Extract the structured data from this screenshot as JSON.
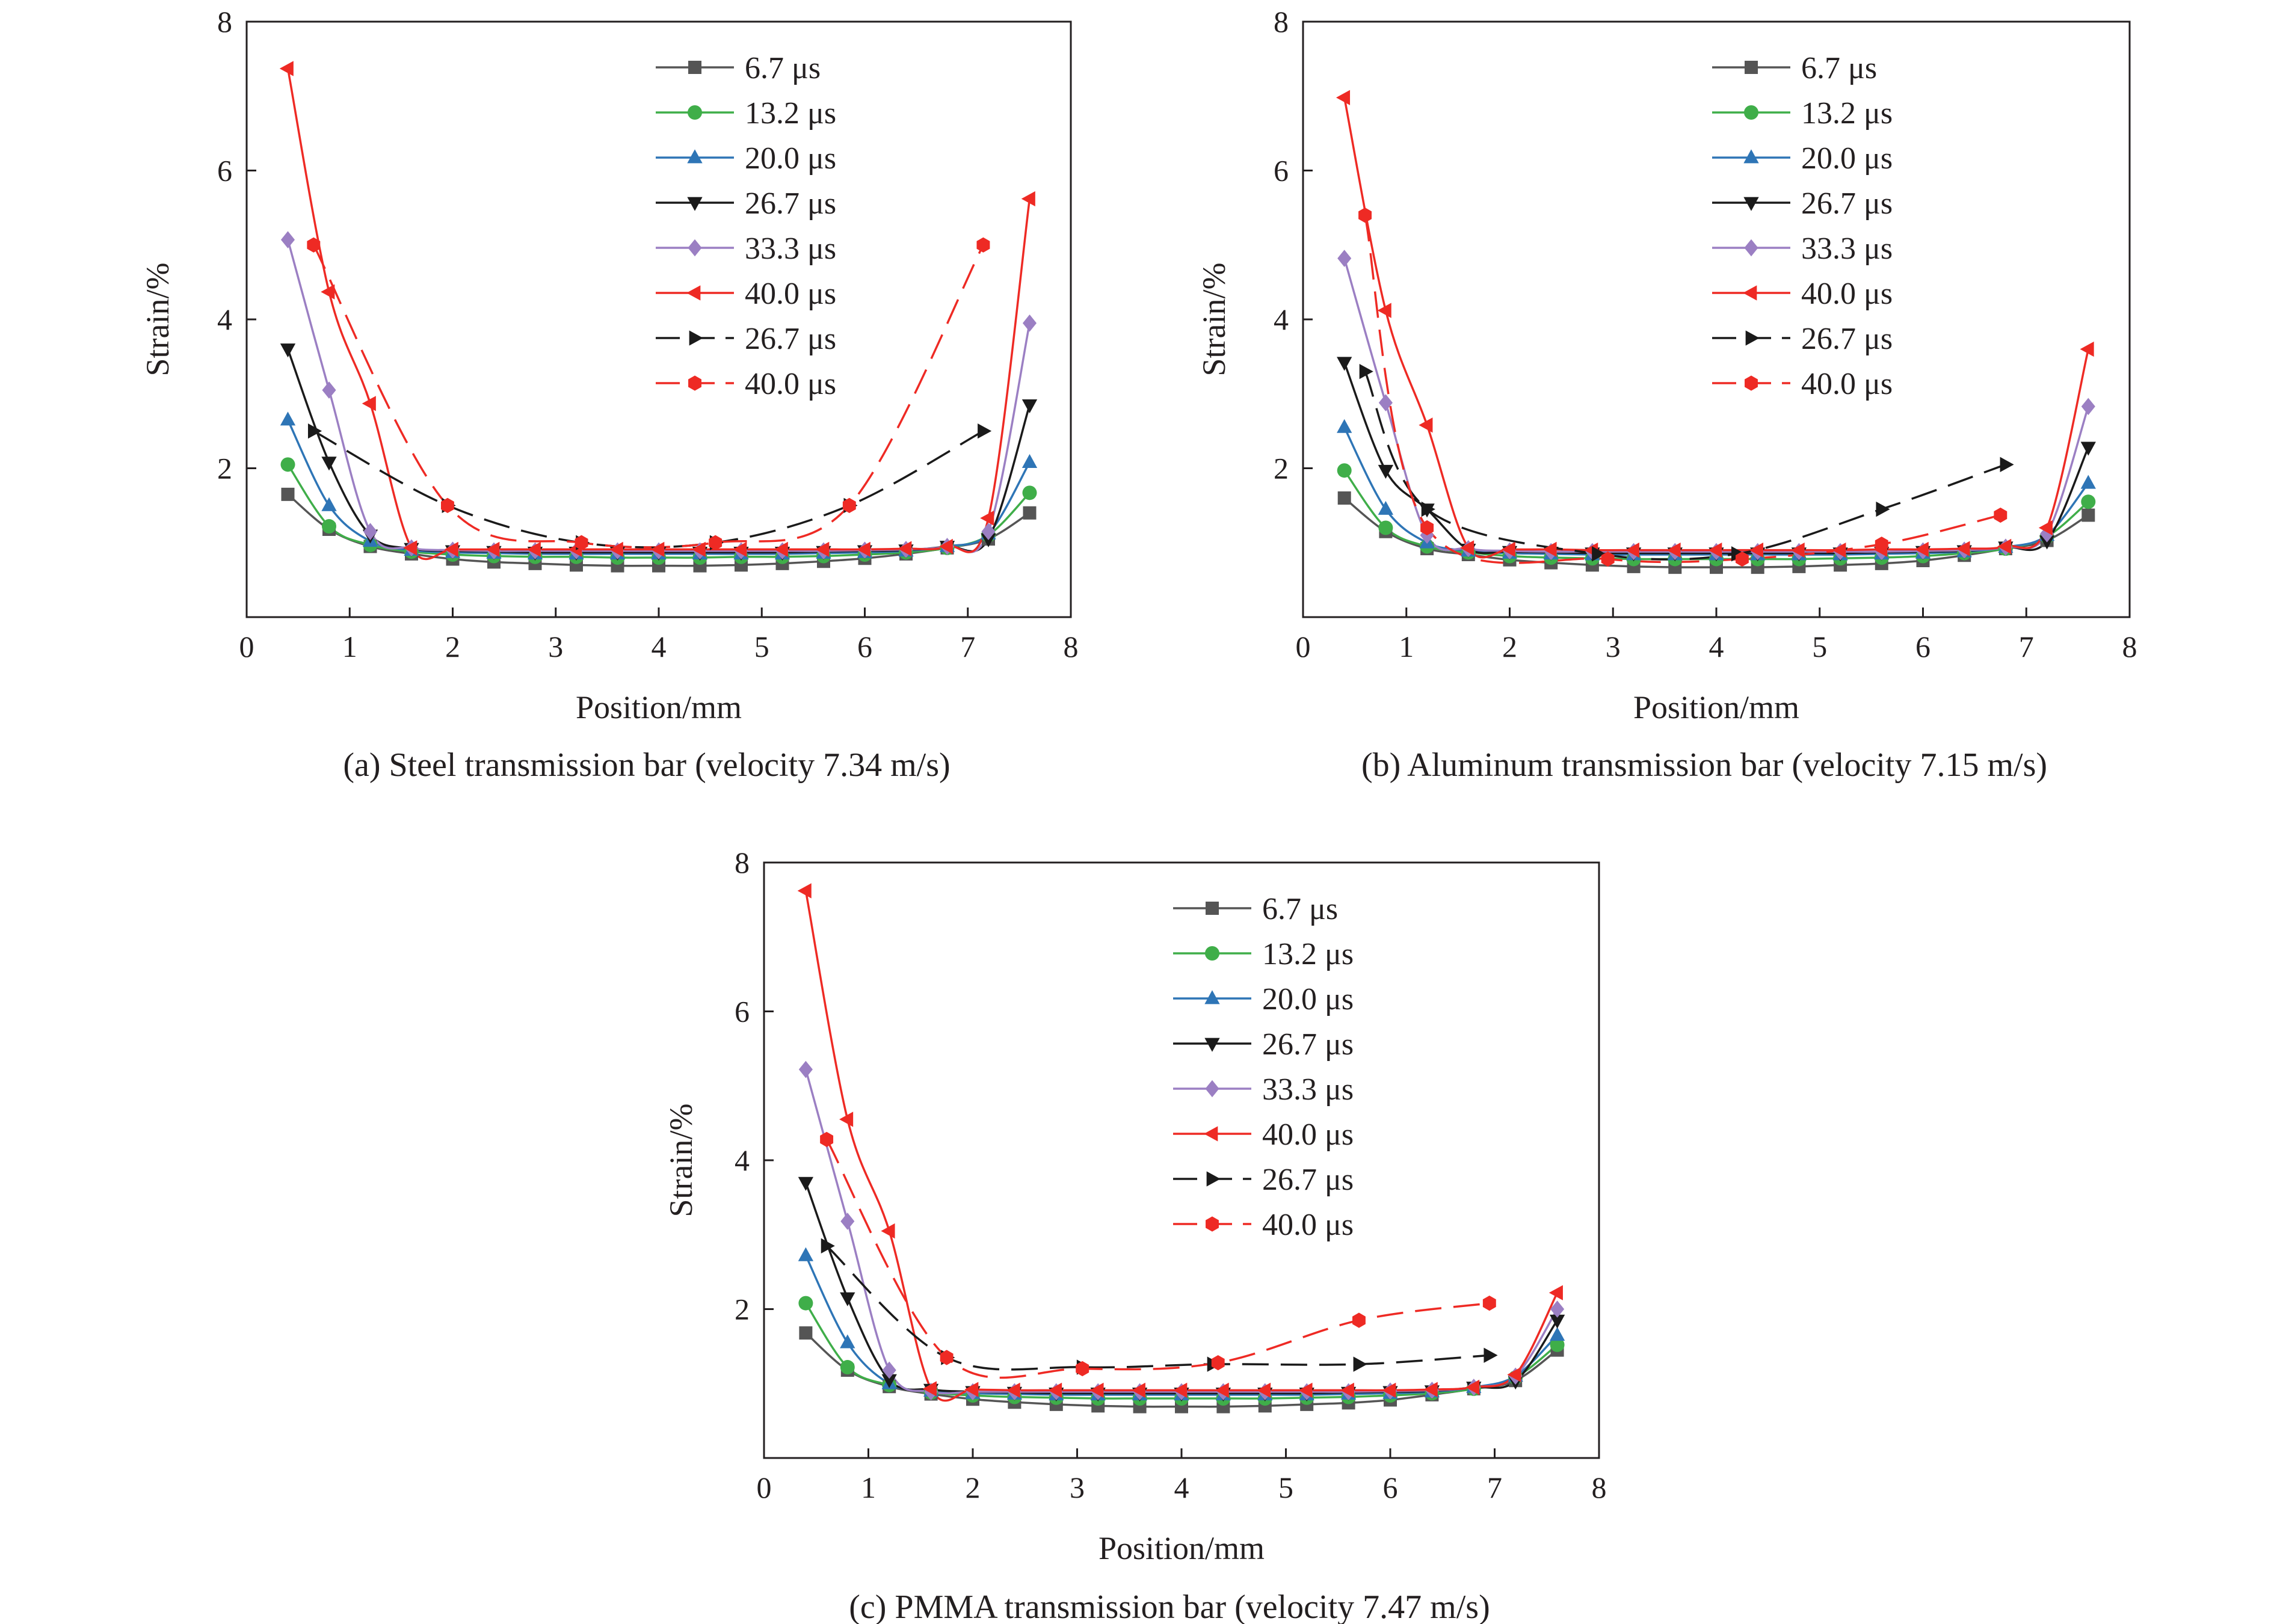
{
  "chart_data": [
    {
      "type": "line",
      "caption": "(a) Steel transmission bar (velocity 7.34 m/s)",
      "xlabel": "Position/mm",
      "ylabel": "Strain/%",
      "xlim": [
        0,
        8
      ],
      "ylim": [
        0,
        8
      ],
      "xticks": [
        "0",
        "1",
        "2",
        "3",
        "4",
        "5",
        "6",
        "7",
        "8"
      ],
      "yticks": [
        "2",
        "4",
        "6",
        "8"
      ],
      "grid": false,
      "legend_position": "top-right",
      "series": [
        {
          "name": "6.7 μs",
          "color": "#555555",
          "marker": "square",
          "dashed": false,
          "x": [
            0.4,
            0.8,
            1.2,
            1.6,
            2.0,
            2.4,
            2.8,
            3.2,
            3.6,
            4.0,
            4.4,
            4.8,
            5.2,
            5.6,
            6.0,
            6.4,
            6.8,
            7.2,
            7.6
          ],
          "y": [
            1.65,
            1.18,
            0.95,
            0.85,
            0.78,
            0.74,
            0.72,
            0.7,
            0.69,
            0.69,
            0.69,
            0.7,
            0.72,
            0.75,
            0.79,
            0.85,
            0.93,
            1.05,
            1.4
          ]
        },
        {
          "name": "13.2 μs",
          "color": "#3fae49",
          "marker": "circle",
          "dashed": false,
          "x": [
            0.4,
            0.8,
            1.2,
            1.6,
            2.0,
            2.4,
            2.8,
            3.2,
            3.6,
            4.0,
            4.4,
            4.8,
            5.2,
            5.6,
            6.0,
            6.4,
            6.8,
            7.2,
            7.6
          ],
          "y": [
            2.05,
            1.22,
            0.97,
            0.88,
            0.84,
            0.82,
            0.81,
            0.81,
            0.8,
            0.8,
            0.8,
            0.81,
            0.81,
            0.82,
            0.84,
            0.87,
            0.93,
            1.1,
            1.67
          ]
        },
        {
          "name": "20.0 μs",
          "color": "#2e75b6",
          "marker": "triangle-up",
          "dashed": false,
          "x": [
            0.4,
            0.8,
            1.2,
            1.6,
            2.0,
            2.4,
            2.8,
            3.2,
            3.6,
            4.0,
            4.4,
            4.8,
            5.2,
            5.6,
            6.0,
            6.4,
            6.8,
            7.2,
            7.6
          ],
          "y": [
            2.65,
            1.5,
            1.02,
            0.9,
            0.87,
            0.86,
            0.85,
            0.85,
            0.85,
            0.85,
            0.85,
            0.85,
            0.85,
            0.86,
            0.87,
            0.89,
            0.95,
            1.12,
            2.08
          ]
        },
        {
          "name": "26.7 μs",
          "color": "#1a1a1a",
          "marker": "triangle-down",
          "dashed": false,
          "x": [
            0.4,
            0.8,
            1.2,
            1.6,
            2.0,
            2.4,
            2.8,
            3.2,
            3.6,
            4.0,
            4.4,
            4.8,
            5.2,
            5.6,
            6.0,
            6.4,
            6.8,
            7.2,
            7.6
          ],
          "y": [
            3.6,
            2.08,
            1.1,
            0.92,
            0.89,
            0.88,
            0.87,
            0.87,
            0.87,
            0.87,
            0.87,
            0.87,
            0.87,
            0.88,
            0.89,
            0.9,
            0.95,
            1.05,
            2.85
          ]
        },
        {
          "name": "33.3 μs",
          "color": "#9b7fc3",
          "marker": "diamond",
          "dashed": false,
          "x": [
            0.4,
            0.8,
            1.2,
            1.6,
            2.0,
            2.4,
            2.8,
            3.2,
            3.6,
            4.0,
            4.4,
            4.8,
            5.2,
            5.6,
            6.0,
            6.4,
            6.8,
            7.2,
            7.6
          ],
          "y": [
            5.07,
            3.05,
            1.15,
            0.93,
            0.9,
            0.89,
            0.89,
            0.89,
            0.89,
            0.89,
            0.89,
            0.89,
            0.89,
            0.89,
            0.9,
            0.91,
            0.95,
            1.15,
            3.95
          ]
        },
        {
          "name": "40.0 μs",
          "color": "#ee2a24",
          "marker": "triangle-left",
          "dashed": false,
          "x": [
            0.4,
            0.8,
            1.2,
            1.6,
            2.0,
            2.4,
            2.8,
            3.2,
            3.6,
            4.0,
            4.4,
            4.8,
            5.2,
            5.6,
            6.0,
            6.4,
            6.8,
            7.2,
            7.6
          ],
          "y": [
            7.37,
            4.37,
            2.87,
            0.93,
            0.91,
            0.91,
            0.91,
            0.91,
            0.91,
            0.91,
            0.91,
            0.91,
            0.91,
            0.91,
            0.91,
            0.92,
            0.95,
            1.33,
            5.62
          ]
        },
        {
          "name": "26.7 μs",
          "color": "#1a1a1a",
          "marker": "triangle-right",
          "dashed": true,
          "x": [
            0.65,
            1.95,
            3.25,
            4.55,
            5.85,
            7.15
          ],
          "y": [
            2.5,
            1.5,
            1.0,
            1.0,
            1.5,
            2.5
          ]
        },
        {
          "name": "40.0 μs",
          "color": "#ee2a24",
          "marker": "hexagon",
          "dashed": true,
          "x": [
            0.65,
            1.95,
            3.25,
            4.55,
            5.85,
            7.15
          ],
          "y": [
            5.0,
            1.5,
            1.0,
            1.0,
            1.5,
            5.0
          ]
        }
      ]
    },
    {
      "type": "line",
      "caption": "(b) Aluminum transmission bar (velocity 7.15 m/s)",
      "xlabel": "Position/mm",
      "ylabel": "Strain/%",
      "xlim": [
        0,
        8
      ],
      "ylim": [
        0,
        8
      ],
      "xticks": [
        "0",
        "1",
        "2",
        "3",
        "4",
        "5",
        "6",
        "7",
        "8"
      ],
      "yticks": [
        "2",
        "4",
        "6",
        "8"
      ],
      "grid": false,
      "legend_position": "top-right",
      "series": [
        {
          "name": "6.7 μs",
          "color": "#555555",
          "marker": "square",
          "dashed": false,
          "x": [
            0.4,
            0.8,
            1.2,
            1.6,
            2.0,
            2.4,
            2.8,
            3.2,
            3.6,
            4.0,
            4.4,
            4.8,
            5.2,
            5.6,
            6.0,
            6.4,
            6.8,
            7.2,
            7.6
          ],
          "y": [
            1.6,
            1.15,
            0.92,
            0.84,
            0.77,
            0.73,
            0.7,
            0.68,
            0.67,
            0.67,
            0.67,
            0.68,
            0.7,
            0.72,
            0.76,
            0.83,
            0.92,
            1.03,
            1.37
          ]
        },
        {
          "name": "13.2 μs",
          "color": "#3fae49",
          "marker": "circle",
          "dashed": false,
          "x": [
            0.4,
            0.8,
            1.2,
            1.6,
            2.0,
            2.4,
            2.8,
            3.2,
            3.6,
            4.0,
            4.4,
            4.8,
            5.2,
            5.6,
            6.0,
            6.4,
            6.8,
            7.2,
            7.6
          ],
          "y": [
            1.97,
            1.2,
            0.95,
            0.87,
            0.82,
            0.8,
            0.79,
            0.78,
            0.78,
            0.78,
            0.78,
            0.78,
            0.79,
            0.8,
            0.82,
            0.86,
            0.92,
            1.08,
            1.55
          ]
        },
        {
          "name": "20.0 μs",
          "color": "#2e75b6",
          "marker": "triangle-up",
          "dashed": false,
          "x": [
            0.4,
            0.8,
            1.2,
            1.6,
            2.0,
            2.4,
            2.8,
            3.2,
            3.6,
            4.0,
            4.4,
            4.8,
            5.2,
            5.6,
            6.0,
            6.4,
            6.8,
            7.2,
            7.6
          ],
          "y": [
            2.55,
            1.45,
            1.0,
            0.89,
            0.86,
            0.85,
            0.84,
            0.84,
            0.84,
            0.84,
            0.84,
            0.84,
            0.84,
            0.85,
            0.86,
            0.88,
            0.94,
            1.1,
            1.8
          ]
        },
        {
          "name": "26.7 μs",
          "color": "#1a1a1a",
          "marker": "triangle-down",
          "dashed": false,
          "x": [
            0.4,
            0.8,
            1.2,
            1.6,
            2.0,
            2.4,
            2.8,
            3.2,
            3.6,
            4.0,
            4.4,
            4.8,
            5.2,
            5.6,
            6.0,
            6.4,
            6.8,
            7.2,
            7.6
          ],
          "y": [
            3.42,
            1.97,
            1.45,
            0.91,
            0.88,
            0.87,
            0.86,
            0.86,
            0.86,
            0.86,
            0.86,
            0.86,
            0.86,
            0.87,
            0.88,
            0.89,
            0.94,
            1.02,
            2.28
          ]
        },
        {
          "name": "33.3 μs",
          "color": "#9b7fc3",
          "marker": "diamond",
          "dashed": false,
          "x": [
            0.4,
            0.8,
            1.2,
            1.6,
            2.0,
            2.4,
            2.8,
            3.2,
            3.6,
            4.0,
            4.4,
            4.8,
            5.2,
            5.6,
            6.0,
            6.4,
            6.8,
            7.2,
            7.6
          ],
          "y": [
            4.82,
            2.88,
            1.1,
            0.92,
            0.89,
            0.88,
            0.88,
            0.88,
            0.88,
            0.88,
            0.88,
            0.88,
            0.88,
            0.88,
            0.89,
            0.9,
            0.94,
            1.12,
            2.83
          ]
        },
        {
          "name": "40.0 μs",
          "color": "#ee2a24",
          "marker": "triangle-left",
          "dashed": false,
          "x": [
            0.4,
            0.8,
            1.2,
            1.6,
            2.0,
            2.4,
            2.8,
            3.2,
            3.6,
            4.0,
            4.4,
            4.8,
            5.2,
            5.6,
            6.0,
            6.4,
            6.8,
            7.2,
            7.6
          ],
          "y": [
            6.98,
            4.12,
            2.58,
            0.93,
            0.91,
            0.91,
            0.9,
            0.9,
            0.9,
            0.9,
            0.9,
            0.9,
            0.9,
            0.91,
            0.91,
            0.92,
            0.95,
            1.2,
            3.6
          ]
        },
        {
          "name": "26.7 μs",
          "color": "#1a1a1a",
          "marker": "triangle-right",
          "dashed": true,
          "x": [
            0.6,
            1.2,
            2.85,
            4.2,
            5.6,
            6.8
          ],
          "y": [
            3.3,
            1.45,
            0.85,
            0.85,
            1.45,
            2.05
          ]
        },
        {
          "name": "40.0 μs",
          "color": "#ee2a24",
          "marker": "hexagon",
          "dashed": true,
          "x": [
            0.6,
            1.2,
            2.95,
            4.25,
            5.6,
            6.75
          ],
          "y": [
            5.4,
            1.2,
            0.78,
            0.78,
            0.98,
            1.37
          ]
        }
      ]
    },
    {
      "type": "line",
      "caption": "(c) PMMA transmission bar (velocity 7.47 m/s)",
      "xlabel": "Position/mm",
      "ylabel": "Strain/%",
      "xlim": [
        0,
        8
      ],
      "ylim": [
        0,
        8
      ],
      "xticks": [
        "0",
        "1",
        "2",
        "3",
        "4",
        "5",
        "6",
        "7",
        "8"
      ],
      "yticks": [
        "2",
        "4",
        "6",
        "8"
      ],
      "grid": false,
      "legend_position": "top-right",
      "series": [
        {
          "name": "6.7 μs",
          "color": "#555555",
          "marker": "square",
          "dashed": false,
          "x": [
            0.4,
            0.8,
            1.2,
            1.6,
            2.0,
            2.4,
            2.8,
            3.2,
            3.6,
            4.0,
            4.4,
            4.8,
            5.2,
            5.6,
            6.0,
            6.4,
            6.8,
            7.2,
            7.6
          ],
          "y": [
            1.68,
            1.18,
            0.96,
            0.86,
            0.79,
            0.75,
            0.72,
            0.7,
            0.69,
            0.69,
            0.69,
            0.7,
            0.72,
            0.74,
            0.78,
            0.85,
            0.93,
            1.04,
            1.45
          ]
        },
        {
          "name": "13.2 μs",
          "color": "#3fae49",
          "marker": "circle",
          "dashed": false,
          "x": [
            0.4,
            0.8,
            1.2,
            1.6,
            2.0,
            2.4,
            2.8,
            3.2,
            3.6,
            4.0,
            4.4,
            4.8,
            5.2,
            5.6,
            6.0,
            6.4,
            6.8,
            7.2,
            7.6
          ],
          "y": [
            2.08,
            1.22,
            0.98,
            0.88,
            0.84,
            0.82,
            0.81,
            0.8,
            0.8,
            0.8,
            0.8,
            0.8,
            0.81,
            0.82,
            0.84,
            0.87,
            0.93,
            1.08,
            1.52
          ]
        },
        {
          "name": "20.0 μs",
          "color": "#2e75b6",
          "marker": "triangle-up",
          "dashed": false,
          "x": [
            0.4,
            0.8,
            1.2,
            1.6,
            2.0,
            2.4,
            2.8,
            3.2,
            3.6,
            4.0,
            4.4,
            4.8,
            5.2,
            5.6,
            6.0,
            6.4,
            6.8,
            7.2,
            7.6
          ],
          "y": [
            2.72,
            1.55,
            1.0,
            0.9,
            0.87,
            0.86,
            0.85,
            0.85,
            0.85,
            0.85,
            0.85,
            0.85,
            0.85,
            0.86,
            0.87,
            0.89,
            0.95,
            1.1,
            1.65
          ]
        },
        {
          "name": "26.7 μs",
          "color": "#1a1a1a",
          "marker": "triangle-down",
          "dashed": false,
          "x": [
            0.4,
            0.8,
            1.2,
            1.6,
            2.0,
            2.4,
            2.8,
            3.2,
            3.6,
            4.0,
            4.4,
            4.8,
            5.2,
            5.6,
            6.0,
            6.4,
            6.8,
            7.2,
            7.6
          ],
          "y": [
            3.7,
            2.15,
            1.05,
            0.92,
            0.89,
            0.88,
            0.87,
            0.87,
            0.87,
            0.87,
            0.87,
            0.87,
            0.87,
            0.88,
            0.89,
            0.9,
            0.95,
            1.03,
            1.85
          ]
        },
        {
          "name": "33.3 μs",
          "color": "#9b7fc3",
          "marker": "diamond",
          "dashed": false,
          "x": [
            0.4,
            0.8,
            1.2,
            1.6,
            2.0,
            2.4,
            2.8,
            3.2,
            3.6,
            4.0,
            4.4,
            4.8,
            5.2,
            5.6,
            6.0,
            6.4,
            6.8,
            7.2,
            7.6
          ],
          "y": [
            5.22,
            3.18,
            1.18,
            0.89,
            0.89,
            0.89,
            0.89,
            0.89,
            0.89,
            0.89,
            0.89,
            0.89,
            0.89,
            0.89,
            0.9,
            0.91,
            0.95,
            1.1,
            2.0
          ]
        },
        {
          "name": "40.0 μs",
          "color": "#ee2a24",
          "marker": "triangle-left",
          "dashed": false,
          "x": [
            0.4,
            0.8,
            1.2,
            1.6,
            2.0,
            2.4,
            2.8,
            3.2,
            3.6,
            4.0,
            4.4,
            4.8,
            5.2,
            5.6,
            6.0,
            6.4,
            6.8,
            7.2,
            7.6
          ],
          "y": [
            7.62,
            4.55,
            3.05,
            0.93,
            0.92,
            0.91,
            0.91,
            0.91,
            0.91,
            0.91,
            0.91,
            0.91,
            0.91,
            0.91,
            0.91,
            0.92,
            0.95,
            1.12,
            2.22
          ]
        },
        {
          "name": "26.7 μs",
          "color": "#1a1a1a",
          "marker": "triangle-right",
          "dashed": true,
          "x": [
            0.6,
            1.75,
            3.05,
            4.3,
            5.7,
            6.95
          ],
          "y": [
            2.85,
            1.35,
            1.22,
            1.26,
            1.26,
            1.38
          ]
        },
        {
          "name": "40.0 μs",
          "color": "#ee2a24",
          "marker": "hexagon",
          "dashed": true,
          "x": [
            0.6,
            1.75,
            3.05,
            4.35,
            5.7,
            6.95
          ],
          "y": [
            4.28,
            1.35,
            1.2,
            1.28,
            1.85,
            2.08
          ]
        }
      ]
    }
  ]
}
